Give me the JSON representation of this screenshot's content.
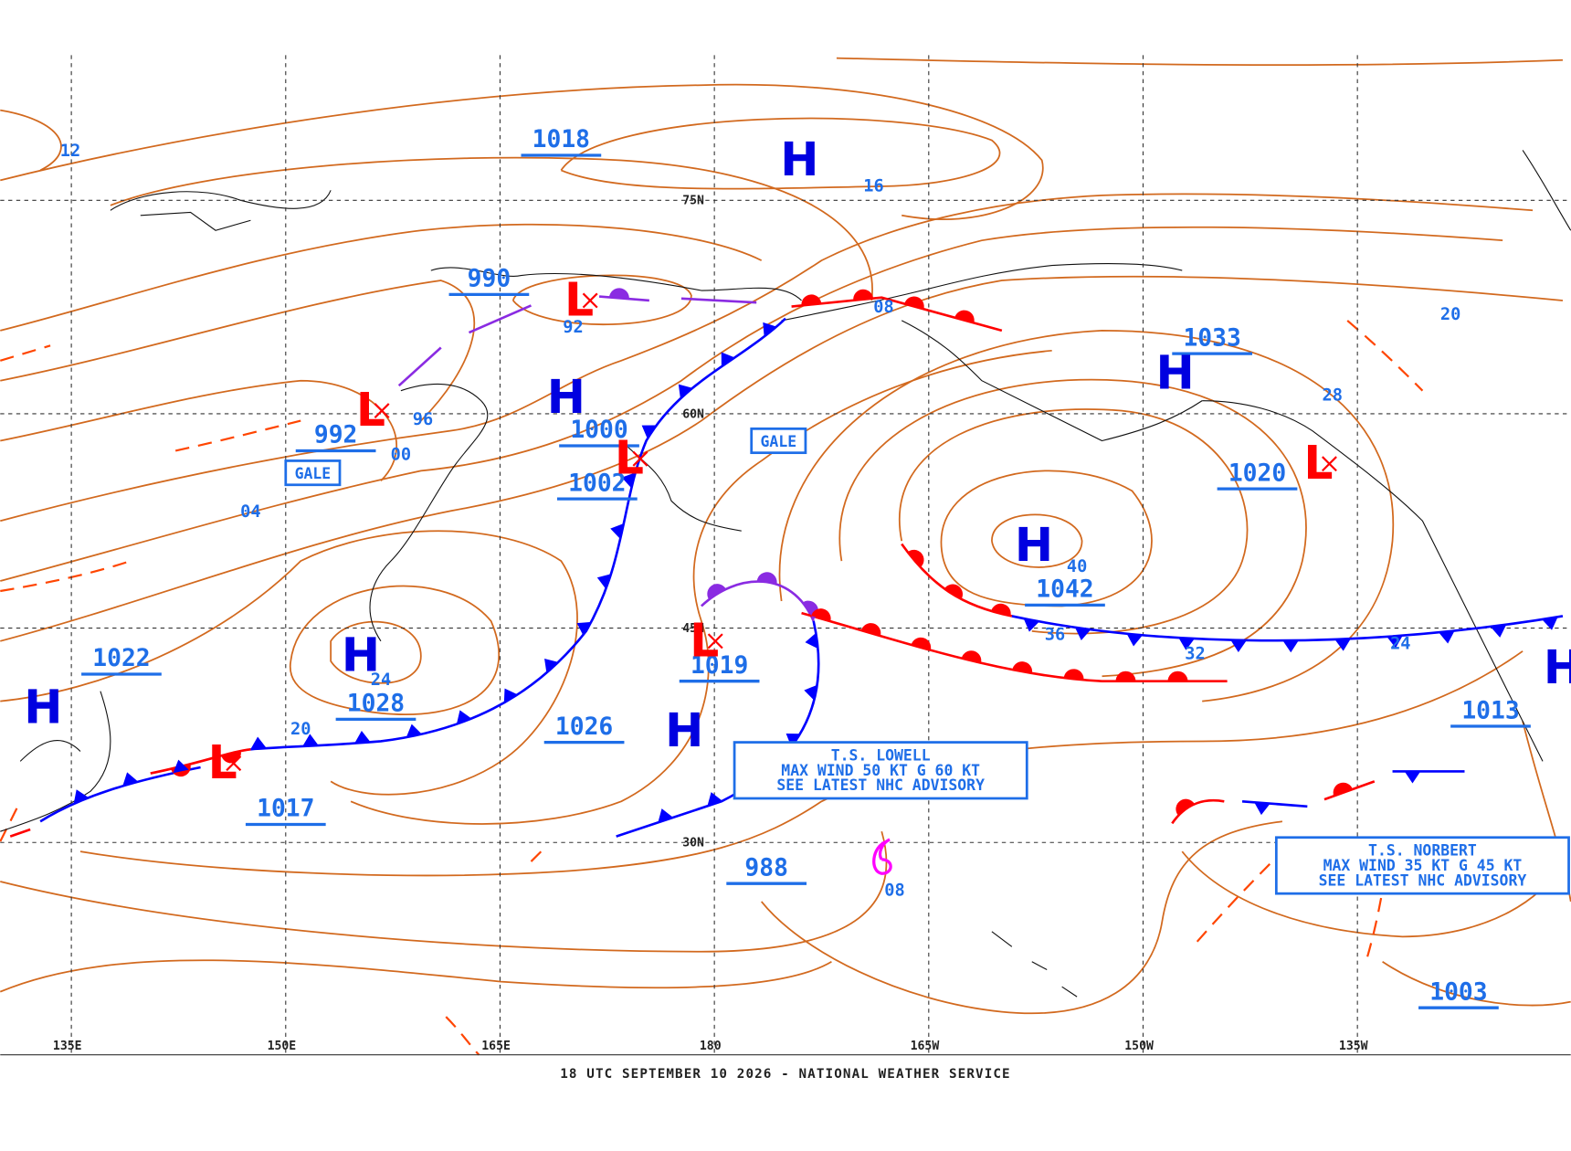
{
  "map": {
    "footer": "18 UTC SEPTEMBER 10 2026 - NATIONAL WEATHER SERVICE",
    "longitude_labels": [
      "135E",
      "150E",
      "165E",
      "180",
      "165W",
      "150W",
      "135W"
    ],
    "latitude_labels": [
      "75N",
      "60N",
      "45N",
      "30N"
    ],
    "isobar_labels": [
      "1018",
      "990",
      "992",
      "1000",
      "1002",
      "1022",
      "1028",
      "1026",
      "1019",
      "1017",
      "988",
      "1033",
      "1020",
      "1042",
      "1013",
      "1003"
    ],
    "isobar_values": [
      "12",
      "16",
      "92",
      "96",
      "00",
      "04",
      "08",
      "24",
      "20",
      "40",
      "36",
      "32",
      "24",
      "28",
      "20",
      "08"
    ],
    "highs": [
      "H",
      "H",
      "H",
      "H",
      "H",
      "H",
      "H",
      "H"
    ],
    "lows": [
      "L",
      "L",
      "L",
      "L",
      "L",
      "L"
    ],
    "gale_warnings": [
      "GALE",
      "GALE"
    ],
    "advisories": [
      [
        "T.S. LOWELL",
        "MAX WIND 50 KT G 60 KT",
        "SEE LATEST NHC ADVISORY"
      ],
      [
        "T.S. NORBERT",
        "MAX WIND 35 KT G 45 KT",
        "SEE LATEST NHC ADVISORY"
      ]
    ]
  }
}
